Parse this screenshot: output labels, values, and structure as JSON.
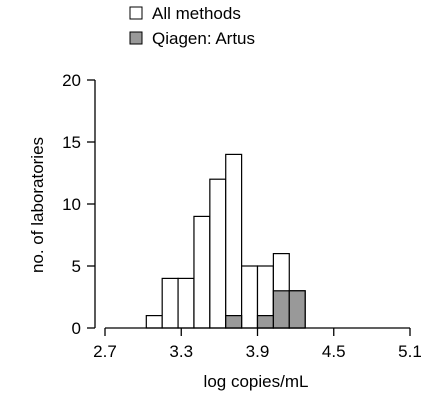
{
  "chart_data": {
    "type": "bar",
    "xlabel": "log copies/mL",
    "ylabel": "no. of laboratories",
    "xlim": [
      2.7,
      5.1
    ],
    "ylim": [
      0,
      20
    ],
    "xticks": [
      "2.7",
      "3.3",
      "3.9",
      "4.5",
      "5.1"
    ],
    "yticks": [
      "0",
      "5",
      "10",
      "15",
      "20"
    ],
    "bin_width": 0.125,
    "legend_position": "top",
    "series": [
      {
        "name": "All methods",
        "color": "#ffffff",
        "bins": [
          {
            "x0": 3.025,
            "value": 1
          },
          {
            "x0": 3.15,
            "value": 4
          },
          {
            "x0": 3.275,
            "value": 4
          },
          {
            "x0": 3.4,
            "value": 9
          },
          {
            "x0": 3.525,
            "value": 12
          },
          {
            "x0": 3.65,
            "value": 14
          },
          {
            "x0": 3.775,
            "value": 5
          },
          {
            "x0": 3.9,
            "value": 5
          },
          {
            "x0": 4.025,
            "value": 6
          },
          {
            "x0": 4.15,
            "value": 3
          }
        ]
      },
      {
        "name": "Qiagen: Artus",
        "color": "#999999",
        "bins": [
          {
            "x0": 3.65,
            "value": 1
          },
          {
            "x0": 3.9,
            "value": 1
          },
          {
            "x0": 4.025,
            "value": 3
          },
          {
            "x0": 4.15,
            "value": 3
          }
        ]
      }
    ]
  }
}
